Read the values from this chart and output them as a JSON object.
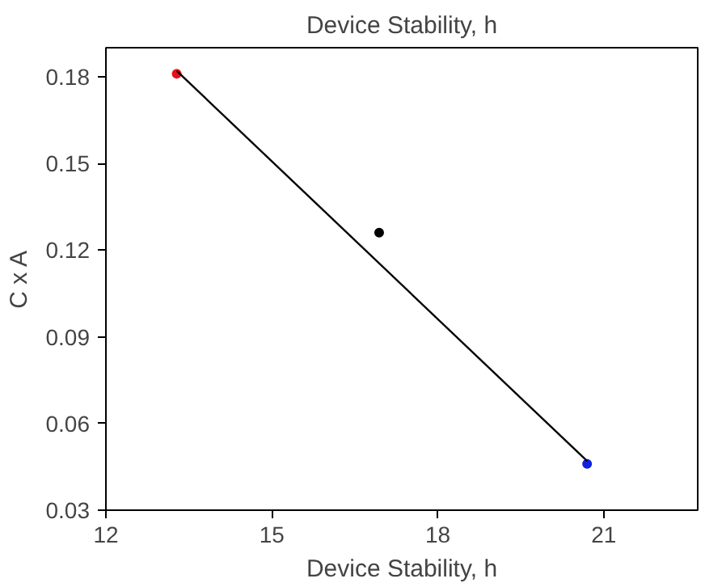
{
  "chart_data": {
    "type": "scatter",
    "title": "Device Stability, h",
    "xlabel": "Device Stability, h",
    "ylabel": "C x A",
    "xlim": [
      12,
      22.7
    ],
    "ylim": [
      0.03,
      0.19
    ],
    "xticks": [
      12,
      15,
      18,
      21
    ],
    "yticks": [
      0.03,
      0.06,
      0.09,
      0.12,
      0.15,
      0.18
    ],
    "grid": false,
    "series": [
      {
        "x": [
          13.28,
          16.94,
          20.7
        ],
        "values": [
          0.181,
          0.126,
          0.046
        ],
        "colors": [
          "#e8101c",
          "#000000",
          "#1020e0"
        ],
        "marker": "circle"
      },
      {
        "type": "line",
        "x": [
          13.28,
          20.7
        ],
        "values": [
          0.182,
          0.047
        ],
        "color": "#000000",
        "line_style": "solid"
      }
    ]
  }
}
